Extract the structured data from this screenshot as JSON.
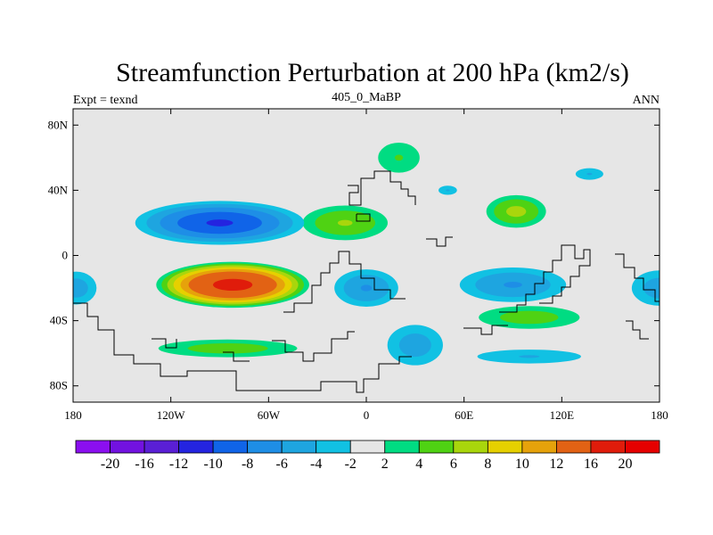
{
  "chart_data": {
    "type": "heatmap",
    "title": "Streamfunction Perturbation at 200 hPa (km2/s)",
    "left_label": "Expt = texnd",
    "center_label": "405_0_MaBP",
    "right_label": "ANN",
    "x_range": [
      -180,
      180
    ],
    "y_range": [
      -90,
      90
    ],
    "x_ticks": [
      {
        "value": -180,
        "label": "180"
      },
      {
        "value": -120,
        "label": "120W"
      },
      {
        "value": -60,
        "label": "60W"
      },
      {
        "value": 0,
        "label": "0"
      },
      {
        "value": 60,
        "label": "60E"
      },
      {
        "value": 120,
        "label": "120E"
      },
      {
        "value": 180,
        "label": "180"
      }
    ],
    "y_ticks": [
      {
        "value": 80,
        "label": "80N"
      },
      {
        "value": 40,
        "label": "40N"
      },
      {
        "value": 0,
        "label": "0"
      },
      {
        "value": -40,
        "label": "40S"
      },
      {
        "value": -80,
        "label": "80S"
      }
    ],
    "colorbar": {
      "labels": [
        "-20",
        "-16",
        "-12",
        "-10",
        "-8",
        "-6",
        "-4",
        "-2",
        "2",
        "4",
        "6",
        "8",
        "10",
        "12",
        "16",
        "20"
      ],
      "colors": [
        "#8b0ff0",
        "#7212e0",
        "#5a1fd5",
        "#2424e0",
        "#1064e8",
        "#1e8ee6",
        "#1ea5e0",
        "#11c1e3",
        "#e6e6e6",
        "#00dc82",
        "#4fd213",
        "#a9d60c",
        "#e6d000",
        "#e6a20b",
        "#e26214",
        "#e01c0b",
        "#e60000"
      ]
    },
    "features": [
      {
        "name": "anticyclone-south-pacific",
        "lon": -82,
        "lat": -18,
        "rlon": 50,
        "rlat": 15,
        "peak": 17
      },
      {
        "name": "cyclone-north-pacific",
        "lon": -90,
        "lat": 20,
        "rlon": 58,
        "rlat": 15,
        "peak": -10
      },
      {
        "name": "north-atlantic-positive",
        "lon": -13,
        "lat": 20,
        "rlon": 32,
        "rlat": 13,
        "peak": 6
      },
      {
        "name": "siberia-positive",
        "lon": 20,
        "lat": 60,
        "rlon": 18,
        "rlat": 13,
        "peak": 4
      },
      {
        "name": "east-asia-positive",
        "lon": 92,
        "lat": 27,
        "rlon": 22,
        "rlat": 12,
        "peak": 6.5
      },
      {
        "name": "south-atlantic-negative",
        "lon": 0,
        "lat": -20,
        "rlon": 24,
        "rlat": 14,
        "peak": -6
      },
      {
        "name": "indian-ocean-negative",
        "lon": 90,
        "lat": -18,
        "rlon": 40,
        "rlat": 13,
        "peak": -6
      },
      {
        "name": "southern-ocean-positive",
        "lon": 100,
        "lat": -38,
        "rlon": 40,
        "rlat": 9,
        "peak": 5
      },
      {
        "name": "south-pacific-high-positive",
        "lon": -85,
        "lat": -57,
        "rlon": 55,
        "rlat": 7,
        "peak": 5
      },
      {
        "name": "southern-indian-negative",
        "lon": 100,
        "lat": -62,
        "rlon": 45,
        "rlat": 6,
        "peak": -4
      },
      {
        "name": "west-pacific-edge-negative",
        "lon": -178,
        "lat": -20,
        "rlon": 16,
        "rlat": 13,
        "peak": -5
      },
      {
        "name": "east-pacific-edge-negative",
        "lon": 180,
        "lat": -20,
        "rlon": 22,
        "rlat": 14,
        "peak": -5
      },
      {
        "name": "arctic-negative",
        "lon": 137,
        "lat": 50,
        "rlon": 12,
        "rlat": 5,
        "peak": -4
      },
      {
        "name": "atlantic-north-negative",
        "lon": 50,
        "lat": 40,
        "rlon": 8,
        "rlat": 4,
        "peak": -4
      },
      {
        "name": "atlantic-south-negative",
        "lon": 30,
        "lat": -55,
        "rlon": 22,
        "rlat": 16,
        "peak": -5
      }
    ]
  }
}
